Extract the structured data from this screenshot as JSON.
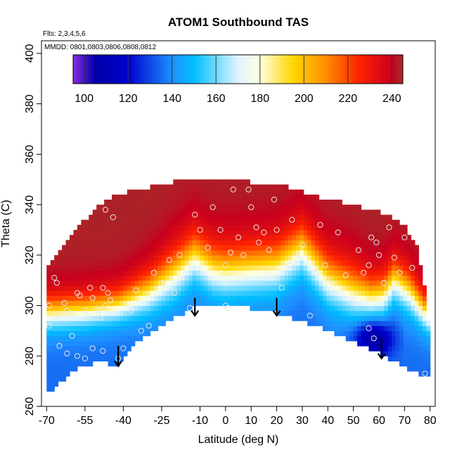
{
  "chart_data": {
    "type": "heatmap",
    "title": "ATOM1 Southbound TAS",
    "subtitle_flights": "Flts: 2,3,4,5,6",
    "subtitle_dates": "MMDD: 0801,0803,0806,0808,0812",
    "xlabel": "Latitude (deg N)",
    "ylabel": "Theta (C)",
    "xlim": [
      -72,
      82
    ],
    "ylim": [
      260,
      405
    ],
    "x_ticks": [
      -70,
      -55,
      -40,
      -25,
      -10,
      0,
      10,
      20,
      30,
      40,
      50,
      60,
      70,
      80
    ],
    "x_tick_labels": [
      "-70",
      "-55",
      "-40",
      "-25",
      "-10",
      "0",
      "10",
      "20",
      "30",
      "40",
      "50",
      "60",
      "70",
      "80"
    ],
    "y_ticks": [
      260,
      280,
      300,
      320,
      340,
      360,
      380,
      400
    ],
    "y_tick_labels": [
      "260",
      "280",
      "300",
      "320",
      "340",
      "360",
      "380",
      "400"
    ],
    "colorbar": {
      "min": 95,
      "max": 245,
      "ticks": [
        100,
        120,
        140,
        160,
        180,
        200,
        220,
        240
      ],
      "tick_labels": [
        "100",
        "120",
        "140",
        "160",
        "180",
        "200",
        "220",
        "240"
      ],
      "stops": [
        {
          "v": 95,
          "c": "#8a2be2"
        },
        {
          "v": 105,
          "c": "#0000a8"
        },
        {
          "v": 120,
          "c": "#0000cd"
        },
        {
          "v": 140,
          "c": "#1e90ff"
        },
        {
          "v": 150,
          "c": "#00bfff"
        },
        {
          "v": 170,
          "c": "#e0f4ff"
        },
        {
          "v": 180,
          "c": "#ffffe0"
        },
        {
          "v": 195,
          "c": "#ffd700"
        },
        {
          "v": 210,
          "c": "#ff8c00"
        },
        {
          "v": 225,
          "c": "#ff2200"
        },
        {
          "v": 240,
          "c": "#c8001e"
        },
        {
          "v": 245,
          "c": "#a52a2a"
        }
      ]
    },
    "domain_outline": {
      "lower": [
        [
          -70,
          266
        ],
        [
          -67,
          268
        ],
        [
          -60,
          275
        ],
        [
          -50,
          279
        ],
        [
          -42,
          277
        ],
        [
          -35,
          286
        ],
        [
          -25,
          293
        ],
        [
          -15,
          299
        ],
        [
          -10,
          301
        ],
        [
          -5,
          302
        ],
        [
          0,
          300
        ],
        [
          10,
          300
        ],
        [
          20,
          298
        ],
        [
          30,
          295
        ],
        [
          40,
          291
        ],
        [
          50,
          287
        ],
        [
          60,
          282
        ],
        [
          70,
          277
        ],
        [
          78,
          272
        ],
        [
          79,
          272
        ]
      ],
      "upper": [
        [
          -70,
          315
        ],
        [
          -65,
          320
        ],
        [
          -60,
          327
        ],
        [
          -55,
          333
        ],
        [
          -50,
          338
        ],
        [
          -45,
          342
        ],
        [
          -35,
          345
        ],
        [
          -25,
          347
        ],
        [
          -15,
          349
        ],
        [
          -10,
          350
        ],
        [
          0,
          349
        ],
        [
          10,
          348
        ],
        [
          20,
          347
        ],
        [
          25,
          346
        ],
        [
          30,
          344
        ],
        [
          40,
          341
        ],
        [
          50,
          339
        ],
        [
          60,
          336
        ],
        [
          65,
          334
        ],
        [
          70,
          331
        ],
        [
          75,
          322
        ],
        [
          78,
          305
        ],
        [
          80,
          285
        ]
      ]
    },
    "field_model": {
      "profile_lat": [
        -70,
        -55,
        -42,
        -30,
        -20,
        -12,
        -5,
        0,
        10,
        20,
        30,
        40,
        50,
        57,
        62,
        66,
        72,
        79
      ],
      "profile_t180": [
        296,
        297,
        299,
        304,
        311,
        318,
        313,
        312,
        313,
        314,
        321,
        309,
        304,
        302,
        303,
        309,
        304,
        295
      ],
      "profile_width": [
        4,
        4,
        4,
        5,
        6,
        6,
        6,
        6,
        6,
        6,
        6,
        6,
        6,
        5,
        5,
        5,
        5,
        4
      ],
      "deep_min_center": [
        58,
        287
      ]
    },
    "obs_points": [
      [
        -69,
        300
      ],
      [
        -69,
        292
      ],
      [
        -67,
        311
      ],
      [
        -66,
        309
      ],
      [
        -65,
        296
      ],
      [
        -63,
        301
      ],
      [
        -62,
        298
      ],
      [
        -60,
        297
      ],
      [
        -58,
        305
      ],
      [
        -57,
        304
      ],
      [
        -55,
        298
      ],
      [
        -54,
        296
      ],
      [
        -53,
        307
      ],
      [
        -52,
        303
      ],
      [
        -50,
        298
      ],
      [
        -49,
        295
      ],
      [
        -48,
        307
      ],
      [
        -47,
        300
      ],
      [
        -46,
        305
      ],
      [
        -45,
        302
      ],
      [
        -47,
        338
      ],
      [
        -44,
        335
      ],
      [
        -40,
        283
      ],
      [
        -37,
        298
      ],
      [
        -35,
        306
      ],
      [
        -33,
        290
      ],
      [
        -30,
        292
      ],
      [
        -28,
        313
      ],
      [
        -25,
        309
      ],
      [
        -22,
        318
      ],
      [
        -20,
        305
      ],
      [
        -18,
        320
      ],
      [
        -14,
        299
      ],
      [
        -12,
        336
      ],
      [
        -10,
        330
      ],
      [
        -7,
        323
      ],
      [
        -5,
        339
      ],
      [
        -2,
        330
      ],
      [
        0,
        316
      ],
      [
        0,
        300
      ],
      [
        1,
        299
      ],
      [
        2,
        321
      ],
      [
        3,
        346
      ],
      [
        5,
        327
      ],
      [
        7,
        320
      ],
      [
        9,
        346
      ],
      [
        10,
        339
      ],
      [
        12,
        331
      ],
      [
        13,
        325
      ],
      [
        15,
        329
      ],
      [
        17,
        322
      ],
      [
        19,
        342
      ],
      [
        20,
        330
      ],
      [
        22,
        307
      ],
      [
        25,
        316
      ],
      [
        26,
        334
      ],
      [
        28,
        320
      ],
      [
        30,
        324
      ],
      [
        33,
        296
      ],
      [
        35,
        313
      ],
      [
        37,
        332
      ],
      [
        39,
        316
      ],
      [
        41,
        310
      ],
      [
        43,
        305
      ],
      [
        44,
        329
      ],
      [
        47,
        312
      ],
      [
        50,
        302
      ],
      [
        52,
        322
      ],
      [
        54,
        313
      ],
      [
        56,
        316
      ],
      [
        57,
        327
      ],
      [
        59,
        325
      ],
      [
        60,
        320
      ],
      [
        62,
        309
      ],
      [
        64,
        331
      ],
      [
        66,
        319
      ],
      [
        68,
        313
      ],
      [
        70,
        327
      ],
      [
        73,
        315
      ],
      [
        76,
        298
      ],
      [
        78,
        273
      ],
      [
        56,
        291
      ],
      [
        58,
        287
      ],
      [
        -62,
        281
      ],
      [
        -58,
        280
      ],
      [
        -55,
        279
      ],
      [
        -52,
        283
      ],
      [
        -42,
        279
      ],
      [
        -48,
        282
      ],
      [
        -65,
        284
      ],
      [
        -60,
        288
      ]
    ],
    "flight_arrows": [
      {
        "lat": -42,
        "theta_top": 284,
        "theta_bottom": 276
      },
      {
        "lat": -12,
        "theta_top": 303,
        "theta_bottom": 296
      },
      {
        "lat": 20,
        "theta_top": 303,
        "theta_bottom": 296
      },
      {
        "lat": 61,
        "theta_top": 287,
        "theta_bottom": 279
      }
    ]
  }
}
